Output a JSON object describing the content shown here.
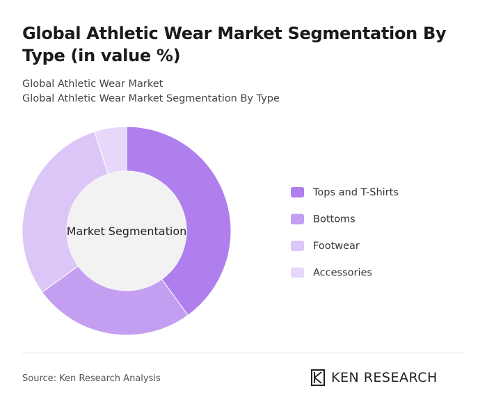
{
  "chart_data": {
    "type": "donut",
    "title": "Global Athletic Wear Market Segmentation By Type (in value %)",
    "subtitle": "Global Athletic Wear Market",
    "subtitle2": "Global Athletic Wear Market Segmentation By Type",
    "center_label": "Market Segmentation",
    "categories": [
      "Tops and T-Shirts",
      "Bottoms",
      "Footwear",
      "Accessories"
    ],
    "values": [
      40,
      25,
      30,
      5
    ],
    "colors": [
      "#b07fee",
      "#c49ef0",
      "#dcc5f7",
      "#e7d8f9"
    ]
  },
  "footer": {
    "source": "Source: Ken Research Analysis",
    "brand": "KEN RESEARCH"
  }
}
